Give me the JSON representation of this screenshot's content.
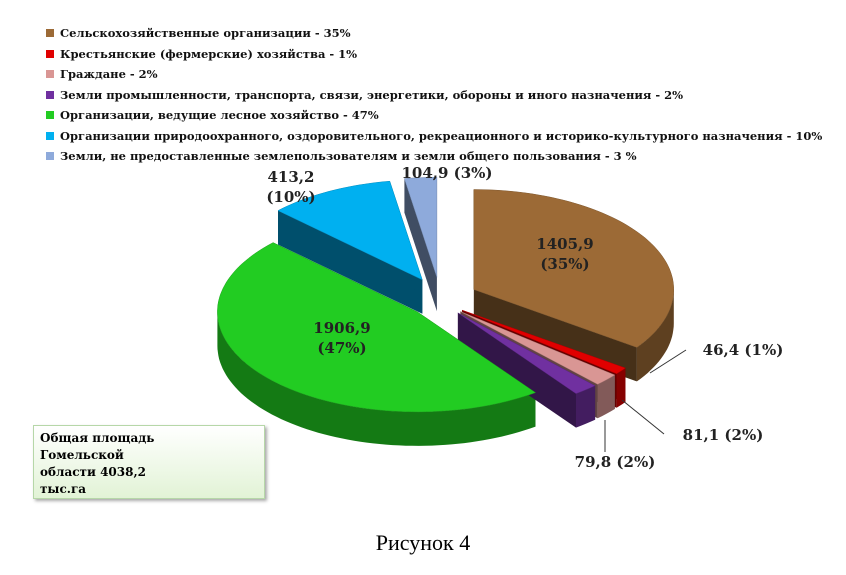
{
  "chart_data": {
    "type": "pie",
    "series": [
      {
        "name": "Сельскохозяйственные организации - 35%",
        "color": "#9c6a36",
        "values": [
          1405.9
        ],
        "value_labels": [
          "1405,9 (35%)"
        ]
      },
      {
        "name": "Крестьянские (фермерские) хозяйства - 1%",
        "color": "#e00000",
        "values": [
          46.4
        ],
        "value_labels": [
          "46,4 (1%)"
        ]
      },
      {
        "name": "Граждане - 2%",
        "color": "#d99694",
        "values": [
          81.1
        ],
        "value_labels": [
          "81,1 (2%)"
        ]
      },
      {
        "name": "Земли промышленности, транспорта, связи, энергетики, обороны и иного назначения - 2%",
        "color": "#7030a0",
        "values": [
          79.8
        ],
        "value_labels": [
          "79,8 (2%)"
        ]
      },
      {
        "name": "Организации, ведущие лесное хозяйство - 47%",
        "color": "#22cc22",
        "values": [
          1906.9
        ],
        "value_labels": [
          "1906,9 (47%)"
        ]
      },
      {
        "name": "Организации природоохранного, оздоровительного, рекреационного и историко-культурного назначения - 10%",
        "color": "#00b0f0",
        "values": [
          413.2
        ],
        "value_labels": [
          "413,2 (10%)"
        ]
      },
      {
        "name": "Земли, не предоставленные землепользователям и земли общего пользования - 3 %",
        "color": "#8eaadb",
        "values": [
          104.9
        ],
        "value_labels": [
          "104,9 (3%)"
        ]
      }
    ],
    "annotation": "Общая площадь Гомельской области 4038,2 тыс.га",
    "caption": "Рисунок 4"
  }
}
